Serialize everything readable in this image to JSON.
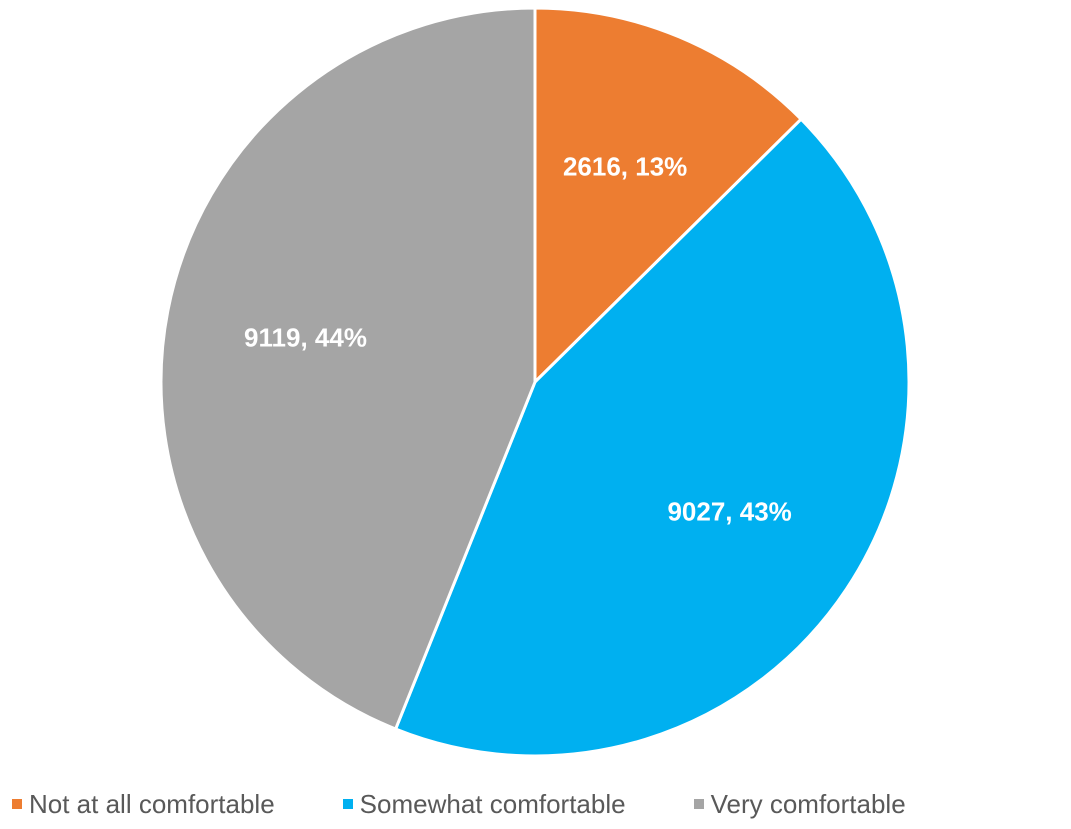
{
  "chart_data": {
    "type": "pie",
    "categories": [
      "Not at all comfortable",
      "Somewhat comfortable",
      "Very comfortable"
    ],
    "values": [
      2616,
      9027,
      9119
    ],
    "percentages": [
      13,
      43,
      44
    ],
    "data_labels": [
      "2616, 13%",
      "9027, 43%",
      "9119, 44%"
    ],
    "colors": [
      "#ED7D31",
      "#00B0F0",
      "#A5A5A5"
    ],
    "start_angle": "12 o'clock, clockwise",
    "legend_position": "bottom",
    "title": ""
  }
}
